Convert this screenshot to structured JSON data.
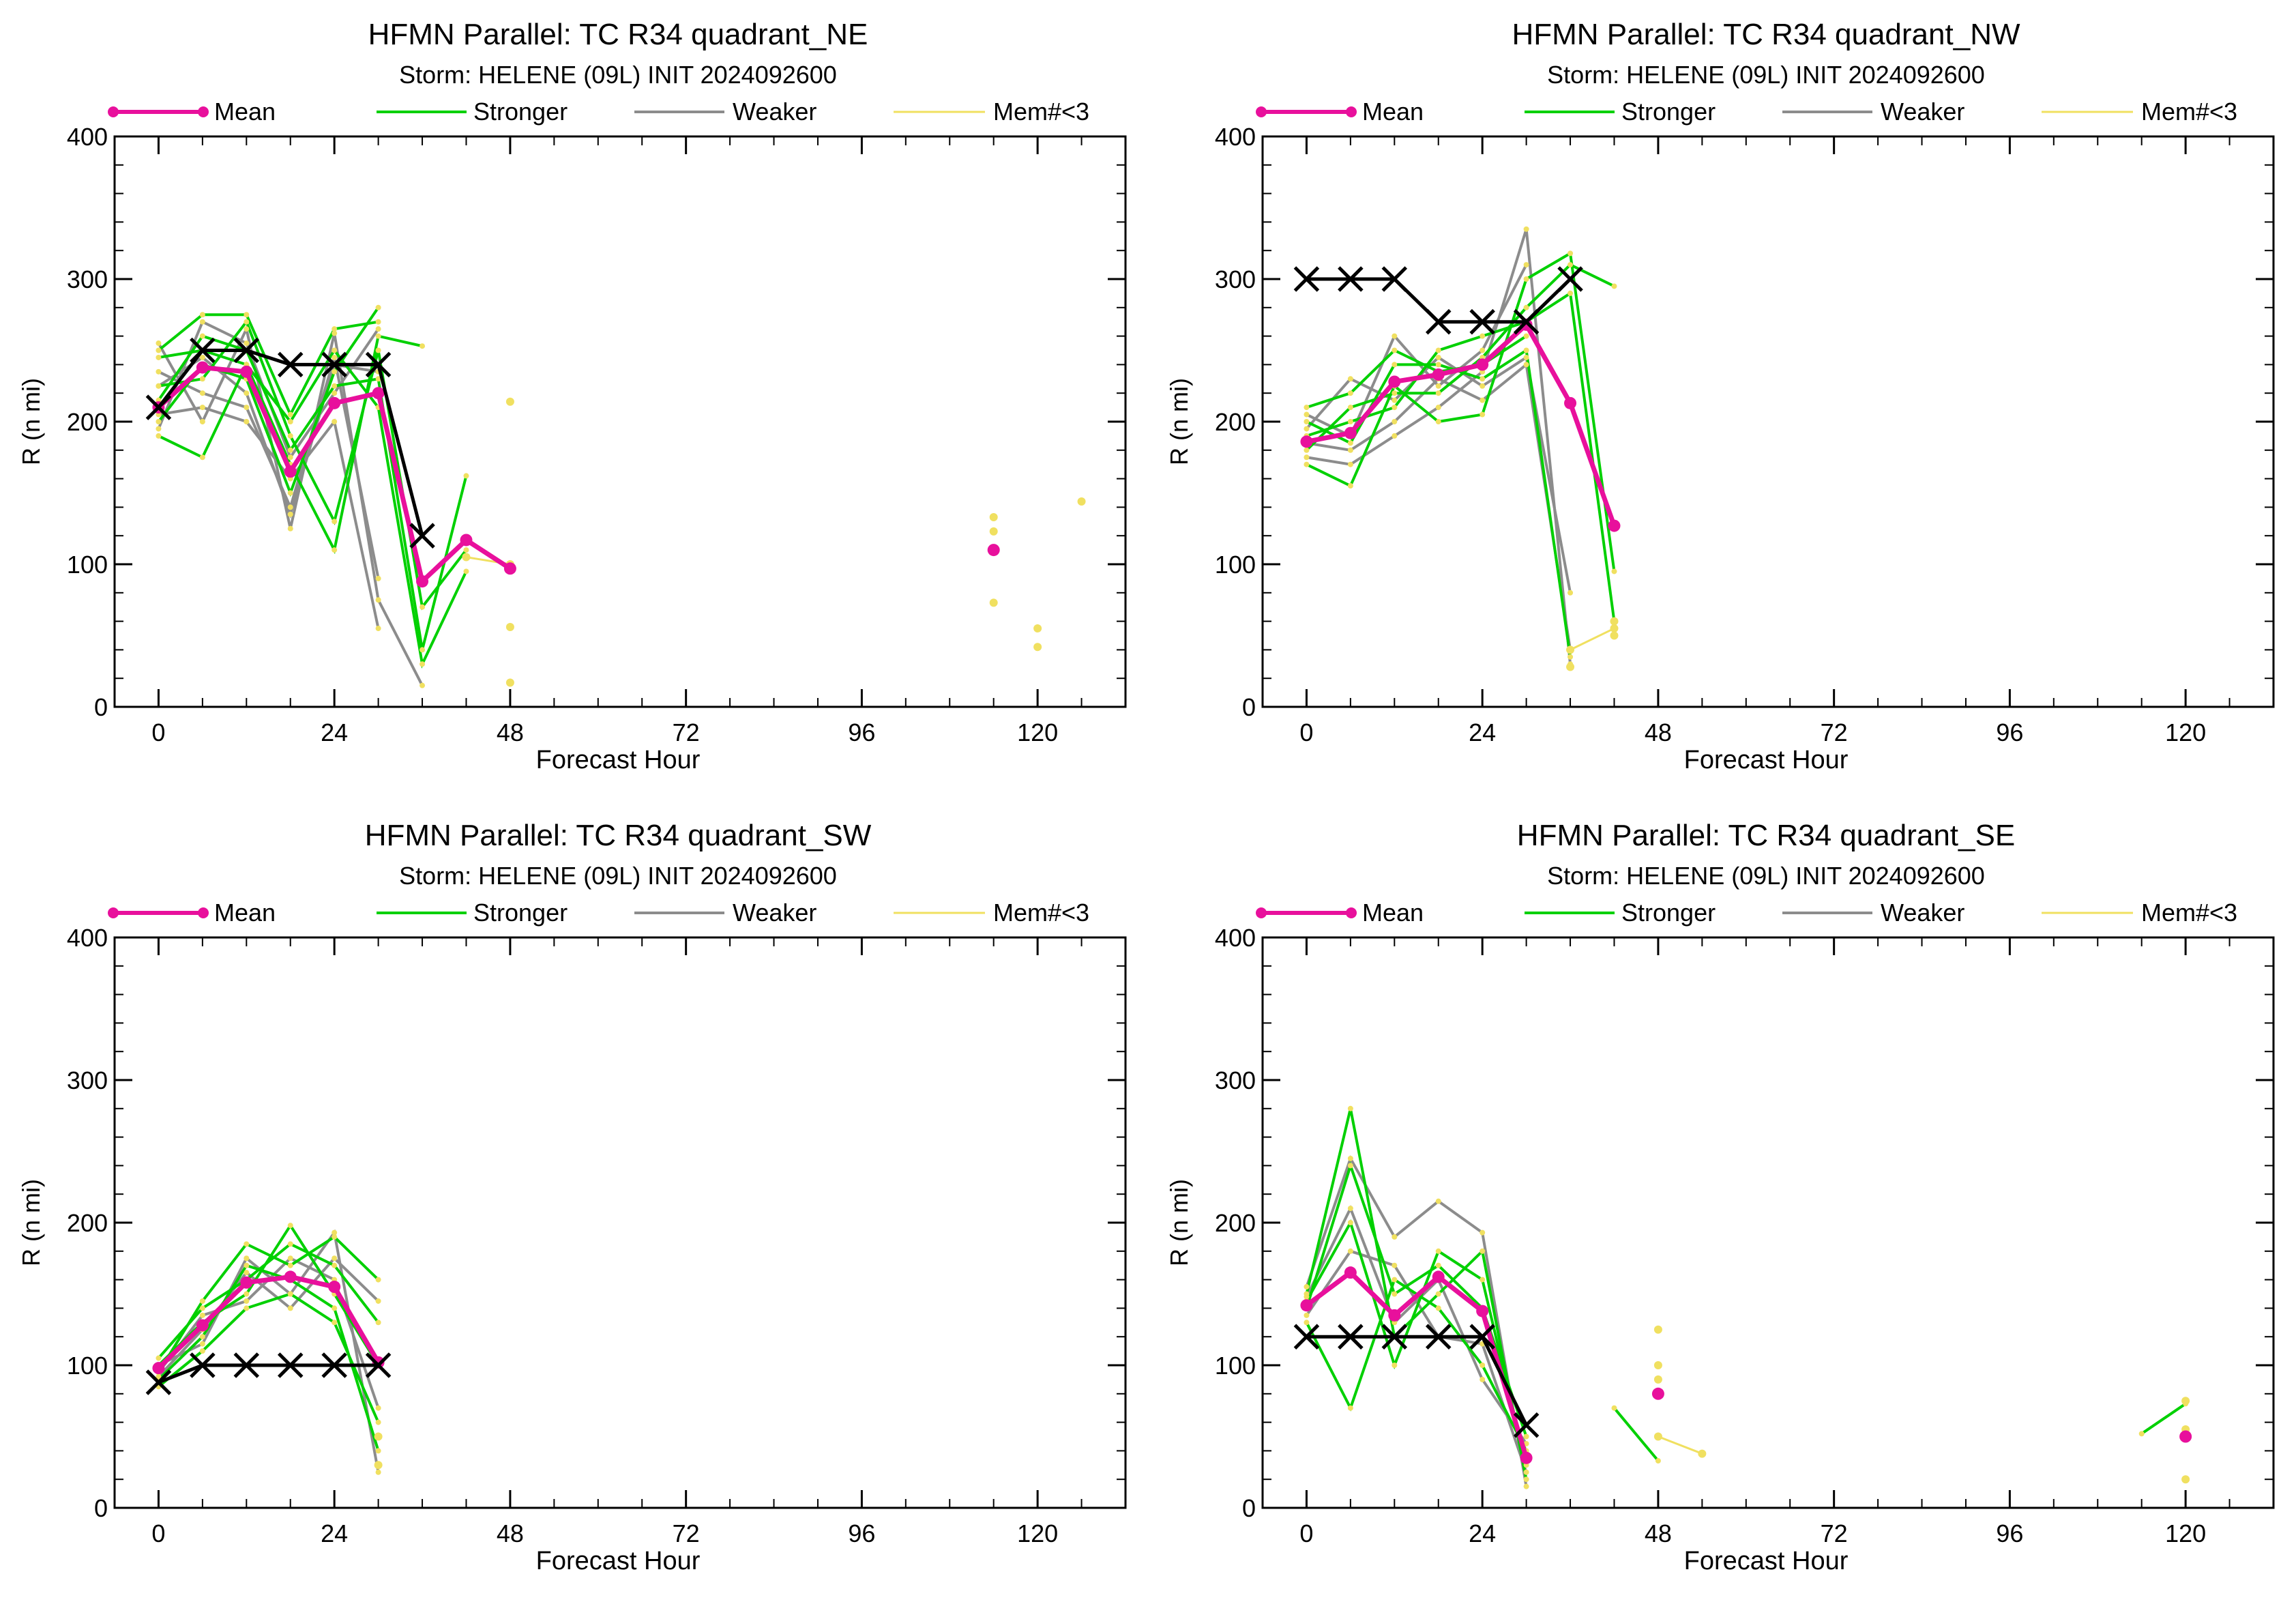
{
  "legend": {
    "mean": "Mean",
    "stronger": "Stronger",
    "weaker": "Weaker",
    "few": "Mem#<3"
  },
  "colors": {
    "mean": "#e8109c",
    "stronger": "#00d000",
    "weaker": "#8c8c8c",
    "few": "#f0e060",
    "observed": "#000000"
  },
  "chart_data": [
    {
      "type": "line",
      "title": "HFMN Parallel: TC  R34 quadrant_NE",
      "subtitle": "Storm: HELENE (09L) INIT 2024092600",
      "xlabel": "Forecast Hour",
      "ylabel": "R (n mi)",
      "xlim": [
        -6,
        132
      ],
      "ylim": [
        0,
        400
      ],
      "xticks": [
        0,
        24,
        48,
        72,
        96,
        120
      ],
      "yticks": [
        0,
        100,
        200,
        300,
        400
      ],
      "x_tick_labels": [
        "0",
        "24",
        "48",
        "72",
        "96",
        "120"
      ],
      "y_tick_labels": [
        "0",
        "100",
        "200",
        "300",
        "400"
      ],
      "observed": {
        "x": [
          0,
          6,
          12,
          18,
          24,
          30,
          36
        ],
        "y": [
          210,
          250,
          250,
          240,
          240,
          240,
          120
        ]
      },
      "mean": {
        "x": [
          0,
          6,
          12,
          18,
          24,
          30,
          36,
          42,
          48
        ],
        "y": [
          210,
          238,
          235,
          165,
          213,
          220,
          88,
          117,
          97
        ]
      },
      "mean_points": {
        "x": [
          114
        ],
        "y": [
          110
        ]
      },
      "stronger": [
        {
          "x": [
            0,
            6,
            12,
            18,
            24,
            30
          ],
          "y": [
            250,
            275,
            275,
            205,
            265,
            270
          ]
        },
        {
          "x": [
            0,
            6,
            12,
            18,
            24,
            30,
            36
          ],
          "y": [
            190,
            175,
            240,
            170,
            110,
            260,
            253
          ]
        },
        {
          "x": [
            0,
            6,
            12,
            18,
            24,
            30
          ],
          "y": [
            200,
            240,
            230,
            150,
            235,
            280
          ]
        },
        {
          "x": [
            0,
            6,
            12,
            18,
            24,
            30,
            36,
            42
          ],
          "y": [
            215,
            260,
            250,
            180,
            225,
            230,
            40,
            162
          ]
        },
        {
          "x": [
            0,
            6,
            12,
            18,
            24,
            30,
            36,
            42
          ],
          "y": [
            225,
            230,
            270,
            190,
            130,
            250,
            70,
            110
          ]
        },
        {
          "x": [
            0,
            6,
            12,
            18,
            24,
            30,
            36,
            42
          ],
          "y": [
            245,
            250,
            240,
            200,
            250,
            210,
            30,
            95
          ]
        }
      ],
      "weaker": [
        {
          "x": [
            0,
            6,
            12,
            18,
            24,
            30,
            36
          ],
          "y": [
            255,
            200,
            265,
            125,
            262,
            75,
            15
          ]
        },
        {
          "x": [
            0,
            6,
            12,
            18,
            24,
            30
          ],
          "y": [
            235,
            220,
            210,
            140,
            245,
            90
          ]
        },
        {
          "x": [
            0,
            6,
            12,
            18,
            24,
            30
          ],
          "y": [
            205,
            210,
            200,
            160,
            200,
            55
          ]
        },
        {
          "x": [
            0,
            6,
            12,
            18,
            24,
            30
          ],
          "y": [
            195,
            270,
            255,
            175,
            220,
            265
          ]
        },
        {
          "x": [
            0,
            6,
            12,
            18,
            24,
            30
          ],
          "y": [
            225,
            245,
            220,
            135,
            240,
            235
          ]
        }
      ],
      "few_lines": [
        {
          "x": [
            42,
            48
          ],
          "y": [
            105,
            100
          ]
        }
      ],
      "few_points": {
        "x": [
          48,
          48,
          48,
          114,
          114,
          114,
          120,
          120,
          126
        ],
        "y": [
          214,
          56,
          17,
          133,
          123,
          73,
          55,
          42,
          144
        ]
      }
    },
    {
      "type": "line",
      "title": "HFMN Parallel: TC  R34 quadrant_NW",
      "subtitle": "Storm: HELENE (09L) INIT 2024092600",
      "xlabel": "Forecast Hour",
      "ylabel": "R (n mi)",
      "xlim": [
        -6,
        132
      ],
      "ylim": [
        0,
        400
      ],
      "xticks": [
        0,
        24,
        48,
        72,
        96,
        120
      ],
      "yticks": [
        0,
        100,
        200,
        300,
        400
      ],
      "x_tick_labels": [
        "0",
        "24",
        "48",
        "72",
        "96",
        "120"
      ],
      "y_tick_labels": [
        "0",
        "100",
        "200",
        "300",
        "400"
      ],
      "observed": {
        "x": [
          0,
          6,
          12,
          18,
          24,
          30,
          36
        ],
        "y": [
          300,
          300,
          300,
          270,
          270,
          270,
          300
        ]
      },
      "mean": {
        "x": [
          0,
          6,
          12,
          18,
          24,
          30,
          36,
          42
        ],
        "y": [
          186,
          192,
          228,
          233,
          240,
          268,
          213,
          127
        ]
      },
      "mean_points": {
        "x": [],
        "y": []
      },
      "stronger": [
        {
          "x": [
            0,
            6,
            12,
            18,
            24,
            30,
            36,
            42
          ],
          "y": [
            170,
            155,
            225,
            200,
            205,
            300,
            318,
            95
          ]
        },
        {
          "x": [
            0,
            6,
            12,
            18,
            24,
            30,
            36
          ],
          "y": [
            200,
            185,
            240,
            240,
            230,
            250,
            35
          ]
        },
        {
          "x": [
            0,
            6,
            12,
            18,
            24,
            30,
            36,
            42
          ],
          "y": [
            180,
            210,
            220,
            220,
            245,
            280,
            310,
            295
          ]
        },
        {
          "x": [
            0,
            6,
            12,
            18,
            24,
            30,
            36,
            42
          ],
          "y": [
            190,
            200,
            210,
            250,
            260,
            270,
            290,
            60
          ]
        },
        {
          "x": [
            0,
            6,
            12,
            18,
            24,
            30
          ],
          "y": [
            210,
            220,
            250,
            235,
            240,
            260
          ]
        }
      ],
      "weaker": [
        {
          "x": [
            0,
            6,
            12,
            18,
            24,
            30,
            36
          ],
          "y": [
            175,
            170,
            190,
            210,
            235,
            335,
            30
          ]
        },
        {
          "x": [
            0,
            6,
            12,
            18,
            24,
            30,
            36
          ],
          "y": [
            195,
            230,
            215,
            245,
            225,
            245,
            80
          ]
        },
        {
          "x": [
            0,
            6,
            12,
            18,
            24,
            30
          ],
          "y": [
            205,
            190,
            260,
            225,
            250,
            310
          ]
        },
        {
          "x": [
            0,
            6,
            12,
            18,
            24,
            30,
            36
          ],
          "y": [
            185,
            180,
            200,
            230,
            215,
            240,
            40
          ]
        }
      ],
      "few_lines": [
        {
          "x": [
            36,
            42
          ],
          "y": [
            40,
            55
          ]
        }
      ],
      "few_points": {
        "x": [
          42,
          42,
          36
        ],
        "y": [
          50,
          60,
          28
        ]
      }
    },
    {
      "type": "line",
      "title": "HFMN Parallel: TC  R34 quadrant_SW",
      "subtitle": "Storm: HELENE (09L) INIT 2024092600",
      "xlabel": "Forecast Hour",
      "ylabel": "R (n mi)",
      "xlim": [
        -6,
        132
      ],
      "ylim": [
        0,
        400
      ],
      "xticks": [
        0,
        24,
        48,
        72,
        96,
        120
      ],
      "yticks": [
        0,
        100,
        200,
        300,
        400
      ],
      "x_tick_labels": [
        "0",
        "24",
        "48",
        "72",
        "96",
        "120"
      ],
      "y_tick_labels": [
        "0",
        "100",
        "200",
        "300",
        "400"
      ],
      "observed": {
        "x": [
          0,
          6,
          12,
          18,
          24,
          30
        ],
        "y": [
          88,
          100,
          100,
          100,
          100,
          100
        ]
      },
      "mean": {
        "x": [
          0,
          6,
          12,
          18,
          24,
          30
        ],
        "y": [
          98,
          128,
          158,
          162,
          155,
          102
        ]
      },
      "mean_points": {
        "x": [],
        "y": []
      },
      "stronger": [
        {
          "x": [
            0,
            6,
            12,
            18,
            24,
            30
          ],
          "y": [
            95,
            145,
            185,
            170,
            190,
            160
          ]
        },
        {
          "x": [
            0,
            6,
            12,
            18,
            24,
            30
          ],
          "y": [
            100,
            130,
            150,
            198,
            150,
            100
          ]
        },
        {
          "x": [
            0,
            6,
            12,
            18,
            24,
            30
          ],
          "y": [
            90,
            120,
            170,
            160,
            140,
            40
          ]
        },
        {
          "x": [
            0,
            6,
            12,
            18,
            24,
            30
          ],
          "y": [
            105,
            140,
            160,
            185,
            170,
            130
          ]
        },
        {
          "x": [
            0,
            6,
            12,
            18,
            24,
            30
          ],
          "y": [
            85,
            110,
            140,
            150,
            130,
            60
          ]
        }
      ],
      "weaker": [
        {
          "x": [
            0,
            6,
            12,
            18,
            24,
            30
          ],
          "y": [
            100,
            115,
            175,
            150,
            193,
            25
          ]
        },
        {
          "x": [
            0,
            6,
            12,
            18,
            24,
            30
          ],
          "y": [
            95,
            135,
            145,
            175,
            160,
            70
          ]
        },
        {
          "x": [
            0,
            6,
            12,
            18,
            24,
            30
          ],
          "y": [
            92,
            125,
            165,
            140,
            175,
            145
          ]
        }
      ],
      "few_lines": [],
      "few_points": {
        "x": [
          30,
          30
        ],
        "y": [
          50,
          30
        ]
      }
    },
    {
      "type": "line",
      "title": "HFMN Parallel: TC  R34 quadrant_SE",
      "subtitle": "Storm: HELENE (09L) INIT 2024092600",
      "xlabel": "Forecast Hour",
      "ylabel": "R (n mi)",
      "xlim": [
        -6,
        132
      ],
      "ylim": [
        0,
        400
      ],
      "xticks": [
        0,
        24,
        48,
        72,
        96,
        120
      ],
      "yticks": [
        0,
        100,
        200,
        300,
        400
      ],
      "x_tick_labels": [
        "0",
        "24",
        "48",
        "72",
        "96",
        "120"
      ],
      "y_tick_labels": [
        "0",
        "100",
        "200",
        "300",
        "400"
      ],
      "observed": {
        "x": [
          0,
          6,
          12,
          18,
          24,
          30
        ],
        "y": [
          120,
          120,
          120,
          120,
          120,
          58
        ]
      },
      "mean": {
        "x": [
          0,
          6,
          12,
          18,
          24,
          30
        ],
        "y": [
          142,
          165,
          135,
          162,
          138,
          35
        ]
      },
      "mean_points": {
        "x": [
          48,
          120
        ],
        "y": [
          80,
          50
        ]
      },
      "stronger": [
        {
          "x": [
            0,
            6,
            12,
            18,
            24,
            30
          ],
          "y": [
            150,
            280,
            120,
            150,
            180,
            20
          ]
        },
        {
          "x": [
            0,
            6,
            12,
            18,
            24,
            30
          ],
          "y": [
            140,
            240,
            150,
            170,
            140,
            50
          ]
        },
        {
          "x": [
            0,
            6,
            12,
            18,
            24,
            30
          ],
          "y": [
            130,
            70,
            160,
            140,
            100,
            40
          ]
        },
        {
          "x": [
            0,
            6,
            12,
            18,
            24,
            30
          ],
          "y": [
            145,
            200,
            100,
            180,
            160,
            30
          ]
        },
        {
          "x": [
            42,
            48
          ],
          "y": [
            70,
            33
          ]
        },
        {
          "x": [
            114,
            120
          ],
          "y": [
            52,
            73
          ]
        }
      ],
      "weaker": [
        {
          "x": [
            0,
            6,
            12,
            18,
            24,
            30
          ],
          "y": [
            155,
            245,
            190,
            215,
            193,
            15
          ]
        },
        {
          "x": [
            0,
            6,
            12,
            18,
            24,
            30
          ],
          "y": [
            135,
            180,
            170,
            120,
            115,
            25
          ]
        },
        {
          "x": [
            0,
            6,
            12,
            18,
            24,
            30
          ],
          "y": [
            148,
            210,
            130,
            160,
            90,
            45
          ]
        }
      ],
      "few_lines": [
        {
          "x": [
            48,
            54
          ],
          "y": [
            50,
            38
          ]
        }
      ],
      "few_points": {
        "x": [
          48,
          48,
          48,
          120,
          120,
          120
        ],
        "y": [
          125,
          100,
          90,
          75,
          55,
          20
        ]
      }
    }
  ]
}
